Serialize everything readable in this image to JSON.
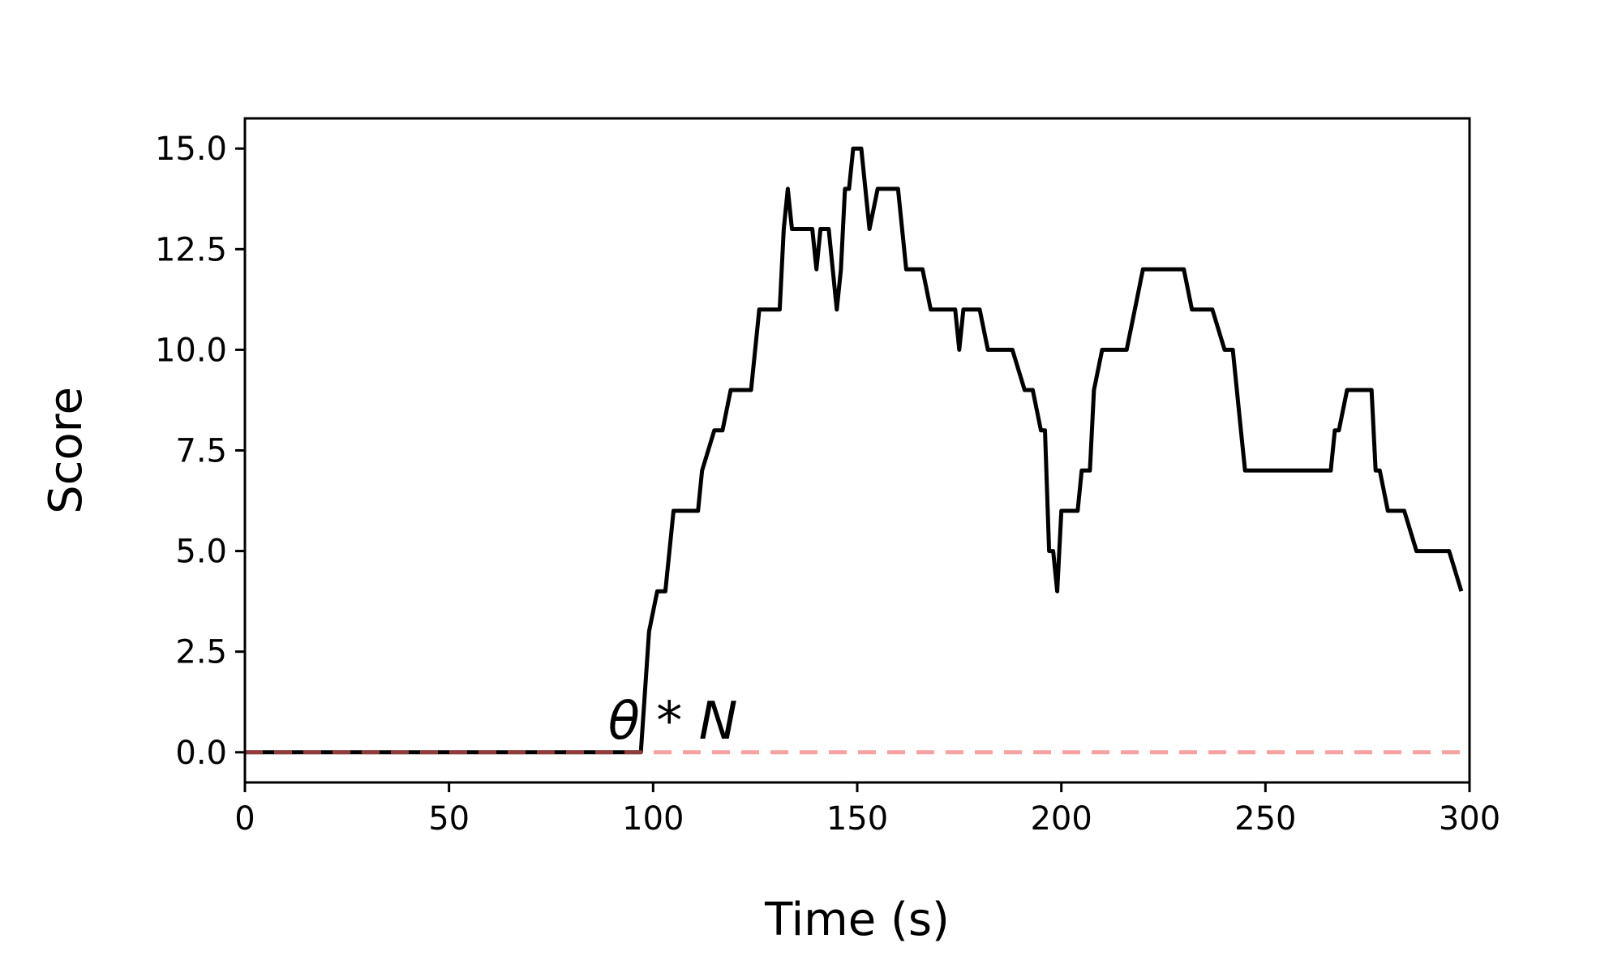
{
  "chart_data": {
    "type": "line",
    "title": "",
    "xlabel": "Time (s)",
    "ylabel": "Score",
    "xlim": [
      0,
      300
    ],
    "ylim": [
      -0.75,
      15.75
    ],
    "xticks": [
      0,
      50,
      100,
      150,
      200,
      250,
      300
    ],
    "xtick_labels": [
      "0",
      "50",
      "100",
      "150",
      "200",
      "250",
      "300"
    ],
    "yticks": [
      0,
      2.5,
      5,
      7.5,
      10,
      12.5,
      15
    ],
    "ytick_labels": [
      "0.0",
      "2.5",
      "5.0",
      "7.5",
      "10.0",
      "12.5",
      "15.0"
    ],
    "grid": false,
    "series": [
      {
        "color": "#000000",
        "style": "solid",
        "x": [
          0,
          97,
          99,
          101,
          103,
          105,
          107,
          109,
          111,
          112,
          115,
          117,
          119,
          121,
          124,
          126,
          128,
          131,
          132,
          133,
          134,
          136,
          139,
          140,
          141,
          143,
          145,
          146,
          147,
          148,
          149,
          150,
          151,
          153,
          155,
          156,
          157,
          158,
          160,
          162,
          164,
          166,
          168,
          170,
          172,
          174,
          175,
          176,
          178,
          180,
          182,
          184,
          186,
          188,
          191,
          193,
          195,
          196,
          197,
          198,
          199,
          200,
          202,
          204,
          205,
          207,
          208,
          210,
          212,
          214,
          216,
          218,
          220,
          223,
          226,
          228,
          230,
          232,
          234,
          237,
          240,
          242,
          243,
          244,
          245,
          248,
          252,
          256,
          260,
          264,
          266,
          267,
          268,
          270,
          272,
          276,
          277,
          278,
          280,
          282,
          284,
          287,
          291,
          295,
          298
        ],
        "y": [
          0,
          0,
          3,
          4,
          4,
          6,
          6,
          6,
          6,
          7,
          8,
          8,
          9,
          9,
          9,
          11,
          11,
          11,
          13,
          14,
          13,
          13,
          13,
          12,
          13,
          13,
          11,
          12,
          14,
          14,
          15,
          15,
          15,
          13,
          14,
          14,
          14,
          14,
          14,
          12,
          12,
          12,
          11,
          11,
          11,
          11,
          10,
          11,
          11,
          11,
          10,
          10,
          10,
          10,
          9,
          9,
          8,
          8,
          5,
          5,
          4,
          6,
          6,
          6,
          7,
          7,
          9,
          10,
          10,
          10,
          10,
          11,
          12,
          12,
          12,
          12,
          12,
          11,
          11,
          11,
          10,
          10,
          9,
          8,
          7,
          7,
          7,
          7,
          7,
          7,
          7,
          8,
          8,
          9,
          9,
          9,
          7,
          7,
          6,
          6,
          6,
          5,
          5,
          5,
          4
        ]
      },
      {
        "color": "#f06464",
        "style": "dashed",
        "x": [
          0,
          300
        ],
        "y": [
          0,
          0
        ]
      }
    ],
    "annotations": [
      {
        "text": "θ * N",
        "x": 83,
        "y": 0.5
      }
    ]
  }
}
